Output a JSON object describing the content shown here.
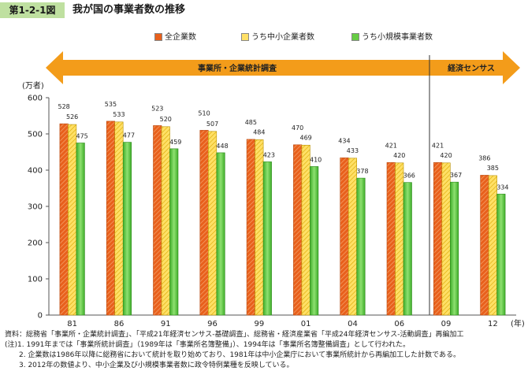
{
  "figure": {
    "label": "第1-2-1図",
    "title": "我が国の事業者数の推移"
  },
  "colors": {
    "series1": "#e8601c",
    "series2": "#ffe066",
    "series3": "#66cc44",
    "arrow": "#f39c1a",
    "header_bg": "#bfe0a0"
  },
  "chart_data": {
    "type": "bar",
    "categories": [
      "81",
      "86",
      "91",
      "96",
      "99",
      "01",
      "04",
      "06",
      "09",
      "12"
    ],
    "x_unit": "(年)",
    "y_unit": "(万者)",
    "ylim": [
      0,
      600
    ],
    "yticks": [
      0,
      100,
      200,
      300,
      400,
      500,
      600
    ],
    "grid": false,
    "legend_position": "top",
    "series": [
      {
        "name": "全企業数",
        "values": [
          528,
          535,
          523,
          510,
          485,
          470,
          434,
          421,
          421,
          386
        ]
      },
      {
        "name": "うち中小企業者数",
        "values": [
          526,
          533,
          520,
          507,
          484,
          469,
          433,
          420,
          420,
          385
        ]
      },
      {
        "name": "うち小規模事業者数",
        "values": [
          475,
          477,
          459,
          448,
          423,
          410,
          378,
          366,
          367,
          334
        ]
      }
    ],
    "periods": [
      {
        "label": "事業所・企業統計調査",
        "from": 0,
        "to": 7
      },
      {
        "label": "経済センサス",
        "from": 8,
        "to": 9
      }
    ]
  },
  "notes": [
    "資料：総務省「事業所・企業統計調査」、「平成21年経済センサス-基礎調査」、総務省・経済産業省「平成24年経済センサス-活動調査」再編加工",
    "(注)1.  1991年までは「事業所統計調査」（1989年は「事業所名簿整備」）、1994年は「事業所名簿整備調査」として行われた。",
    "　　2.  企業数は1986年以降に総務省において統計を取り始めており、1981年は中小企業庁において事業所統計から再編加工した計数である。",
    "　　3.  2012年の数値より、中小企業及び小規模事業者数に政令特例業種を反映している。"
  ]
}
